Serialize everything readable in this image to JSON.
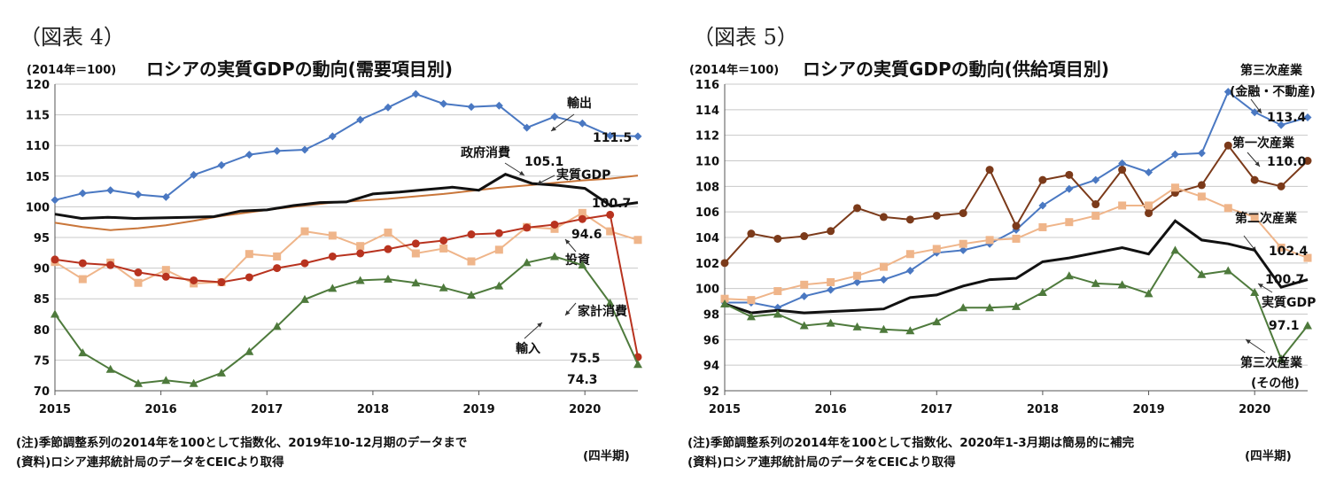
{
  "chart_data": [
    {
      "type": "line",
      "figure_number": "（図表 4）",
      "unit_label": "(2014年＝100)",
      "title": "ロシアの実質GDPの動向(需要項目別)",
      "xlabel": "(四半期)",
      "ylim": [
        70,
        120
      ],
      "ytick_step": 5,
      "x_start": 2015.0,
      "x_end": 2020.5,
      "xticks": [
        "2015",
        "2016",
        "2017",
        "2018",
        "2019",
        "2020"
      ],
      "notes": [
        "(注)季節調整系列の2014年を100として指数化、2019年10-12月期のデータまで",
        "(資料)ロシア連邦統計局のデータをCEICより取得"
      ],
      "series": [
        {
          "name": "輸出",
          "color": "#4a78c2",
          "marker": "diamond",
          "values": [
            101.1,
            102.2,
            102.7,
            102.0,
            101.6,
            105.2,
            106.8,
            108.5,
            109.1,
            109.3,
            111.5,
            114.2,
            116.2,
            118.4,
            116.8,
            116.3,
            116.5,
            112.9,
            114.7,
            113.6,
            111.6,
            111.5
          ],
          "end_label": "111.5"
        },
        {
          "name": "政府消費",
          "color": "#c9763a",
          "marker": "none",
          "values": [
            97.4,
            96.7,
            96.2,
            96.5,
            97.0,
            97.7,
            98.5,
            99.1,
            99.7,
            100.2,
            100.7,
            101.0,
            101.3,
            101.7,
            102.1,
            102.6,
            103.1,
            103.5,
            103.9,
            104.3,
            104.6,
            105.1
          ],
          "end_label": "105.1"
        },
        {
          "name": "実質GDP",
          "color": "#111111",
          "marker": "none",
          "values": [
            98.8,
            98.1,
            98.3,
            98.1,
            98.2,
            98.3,
            98.4,
            99.3,
            99.5,
            100.2,
            100.7,
            100.8,
            102.1,
            102.4,
            102.8,
            103.2,
            102.7,
            105.3,
            103.8,
            103.5,
            103.0,
            100.1,
            100.7
          ],
          "end_label": "100.7"
        },
        {
          "name": "投資",
          "color": "#efb58a",
          "marker": "square",
          "values": [
            91.0,
            88.2,
            90.9,
            87.6,
            89.7,
            87.5,
            87.7,
            92.3,
            91.9,
            96.0,
            95.3,
            93.6,
            95.8,
            92.4,
            93.2,
            91.1,
            93.0,
            96.7,
            96.4,
            99.0,
            96.0,
            94.6
          ],
          "end_label": "94.6"
        },
        {
          "name": "輸入",
          "color": "#b8331f",
          "marker": "circle",
          "values": [
            91.4,
            90.8,
            90.5,
            89.3,
            88.6,
            88.0,
            87.7,
            88.5,
            90.0,
            90.8,
            91.9,
            92.4,
            93.1,
            94.0,
            94.5,
            95.5,
            95.7,
            96.6,
            97.1,
            98.0,
            98.7,
            75.5
          ],
          "end_label": "75.5"
        },
        {
          "name": "家計消費",
          "color": "#4e7a3c",
          "marker": "triangle",
          "values": [
            82.5,
            76.2,
            73.5,
            71.2,
            71.7,
            71.2,
            72.9,
            76.4,
            80.5,
            84.9,
            86.7,
            88.0,
            88.2,
            87.6,
            86.8,
            85.6,
            87.1,
            90.9,
            91.9,
            90.5,
            84.3,
            74.3
          ],
          "end_label": "74.3"
        }
      ]
    },
    {
      "type": "line",
      "figure_number": "（図表 5）",
      "unit_label": "(2014年＝100)",
      "title": "ロシアの実質GDPの動向(供給項目別)",
      "xlabel": "(四半期)",
      "ylim": [
        92,
        116
      ],
      "ytick_step": 2,
      "x_start": 2015.0,
      "x_end": 2020.5,
      "xticks": [
        "2015",
        "2016",
        "2017",
        "2018",
        "2019",
        "2020"
      ],
      "notes": [
        "(注)季節調整系列の2014年を100として指数化、2020年1-3月期は簡易的に補完",
        "(資料)ロシア連邦統計局のデータをCEICより取得"
      ],
      "series": [
        {
          "name": "第三次産業(金融・不動産)",
          "label_line1": "第三次産業",
          "label_line2": "(金融・不動産)",
          "color": "#4a78c2",
          "marker": "diamond",
          "values": [
            98.9,
            98.9,
            98.5,
            99.4,
            99.9,
            100.5,
            100.7,
            101.4,
            102.8,
            103.0,
            103.5,
            104.6,
            106.5,
            107.8,
            108.5,
            109.8,
            109.1,
            110.5,
            110.6,
            115.4,
            113.8,
            112.8,
            113.4
          ],
          "end_label": "113.4"
        },
        {
          "name": "第一次産業",
          "color": "#7b3a1a",
          "marker": "circle",
          "values": [
            102.0,
            104.3,
            103.9,
            104.1,
            104.5,
            106.3,
            105.6,
            105.4,
            105.7,
            105.9,
            109.3,
            104.9,
            108.5,
            108.9,
            106.6,
            109.3,
            105.9,
            107.5,
            108.1,
            111.2,
            108.5,
            108.0,
            110.0
          ],
          "end_label": "110.0"
        },
        {
          "name": "第二次産業",
          "color": "#efb58a",
          "marker": "square",
          "values": [
            99.2,
            99.1,
            99.8,
            100.3,
            100.5,
            101.0,
            101.7,
            102.7,
            103.1,
            103.5,
            103.8,
            103.9,
            104.8,
            105.2,
            105.7,
            106.5,
            106.5,
            107.9,
            107.2,
            106.3,
            105.6,
            103.2,
            102.4
          ],
          "end_label": "102.4"
        },
        {
          "name": "実質GDP",
          "color": "#111111",
          "marker": "none",
          "values": [
            98.8,
            98.1,
            98.3,
            98.1,
            98.2,
            98.3,
            98.4,
            99.3,
            99.5,
            100.2,
            100.7,
            100.8,
            102.1,
            102.4,
            102.8,
            103.2,
            102.7,
            105.3,
            103.8,
            103.5,
            103.0,
            100.1,
            100.7
          ],
          "end_label": "100.7"
        },
        {
          "name": "第三次産業(その他)",
          "label_line1": "第三次産業",
          "label_line2": "(その他)",
          "color": "#4e7a3c",
          "marker": "triangle",
          "values": [
            98.8,
            97.8,
            98.0,
            97.1,
            97.3,
            97.0,
            96.8,
            96.7,
            97.4,
            98.5,
            98.5,
            98.6,
            99.7,
            101.0,
            100.4,
            100.3,
            99.6,
            103.0,
            101.1,
            101.4,
            99.7,
            94.5,
            97.1
          ],
          "end_label": "97.1"
        }
      ]
    }
  ]
}
